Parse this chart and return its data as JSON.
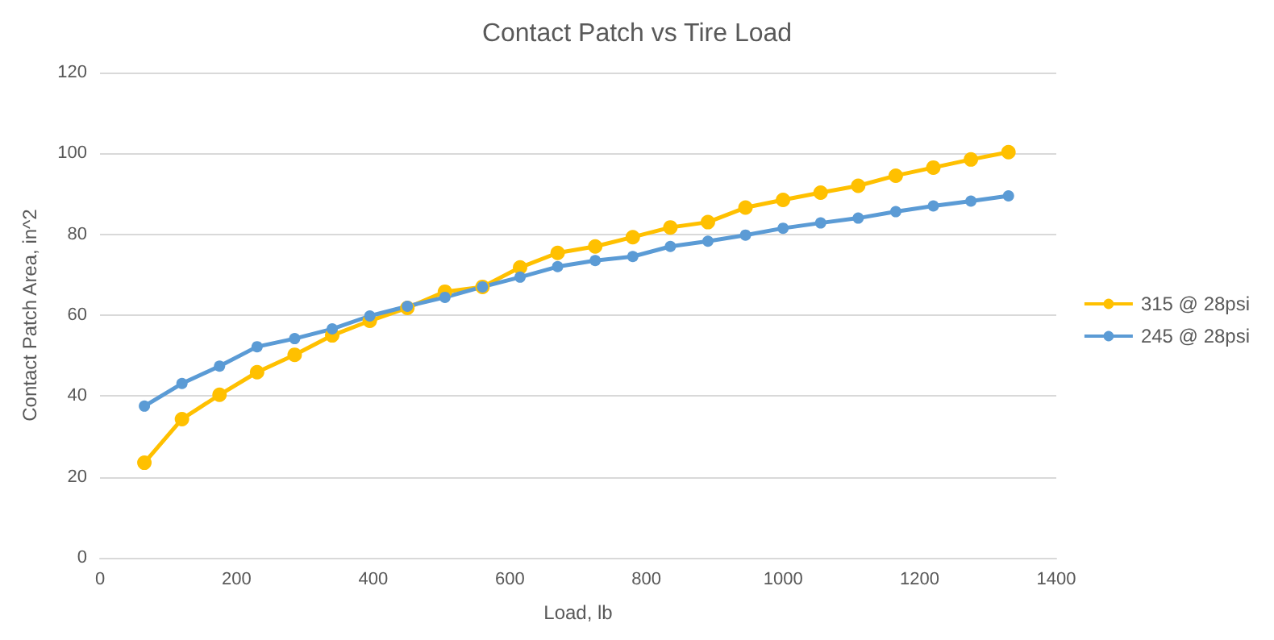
{
  "chart_data": {
    "type": "line",
    "title": "Contact Patch vs Tire Load",
    "xlabel": "Load, lb",
    "ylabel": "Contact Patch Area, in^2",
    "x": [
      65,
      120,
      175,
      230,
      285,
      340,
      395,
      450,
      505,
      560,
      615,
      670,
      725,
      780,
      835,
      890,
      945,
      1000,
      1055,
      1110,
      1165,
      1220,
      1275,
      1330
    ],
    "series": [
      {
        "name": "315 @ 28psi",
        "color": "#ffc000",
        "values": [
          23.5,
          34.3,
          40.3,
          45.9,
          50.2,
          55,
          58.6,
          61.8,
          65.8,
          67,
          71.8,
          75.4,
          77,
          79.3,
          81.7,
          83,
          86.6,
          88.5,
          90.3,
          92,
          94.5,
          96.5,
          98.5,
          100.3
        ]
      },
      {
        "name": "245 @ 28psi",
        "color": "#5b9bd5",
        "values": [
          37.5,
          43.1,
          47.4,
          52.2,
          54.2,
          56.6,
          59.8,
          62.2,
          64.4,
          67,
          69.4,
          72,
          73.5,
          74.5,
          77,
          78.3,
          79.8,
          81.5,
          82.8,
          84,
          85.6,
          87,
          88.2,
          89.5
        ]
      }
    ],
    "xlim": [
      0,
      1400
    ],
    "xticks": [
      0,
      200,
      400,
      600,
      800,
      1000,
      1200,
      1400
    ],
    "ylim": [
      0,
      120
    ],
    "yticks": [
      0,
      20,
      40,
      60,
      80,
      100,
      120
    ],
    "grid": "y",
    "legend": "right",
    "marker": "circle",
    "line_style": "solid"
  }
}
